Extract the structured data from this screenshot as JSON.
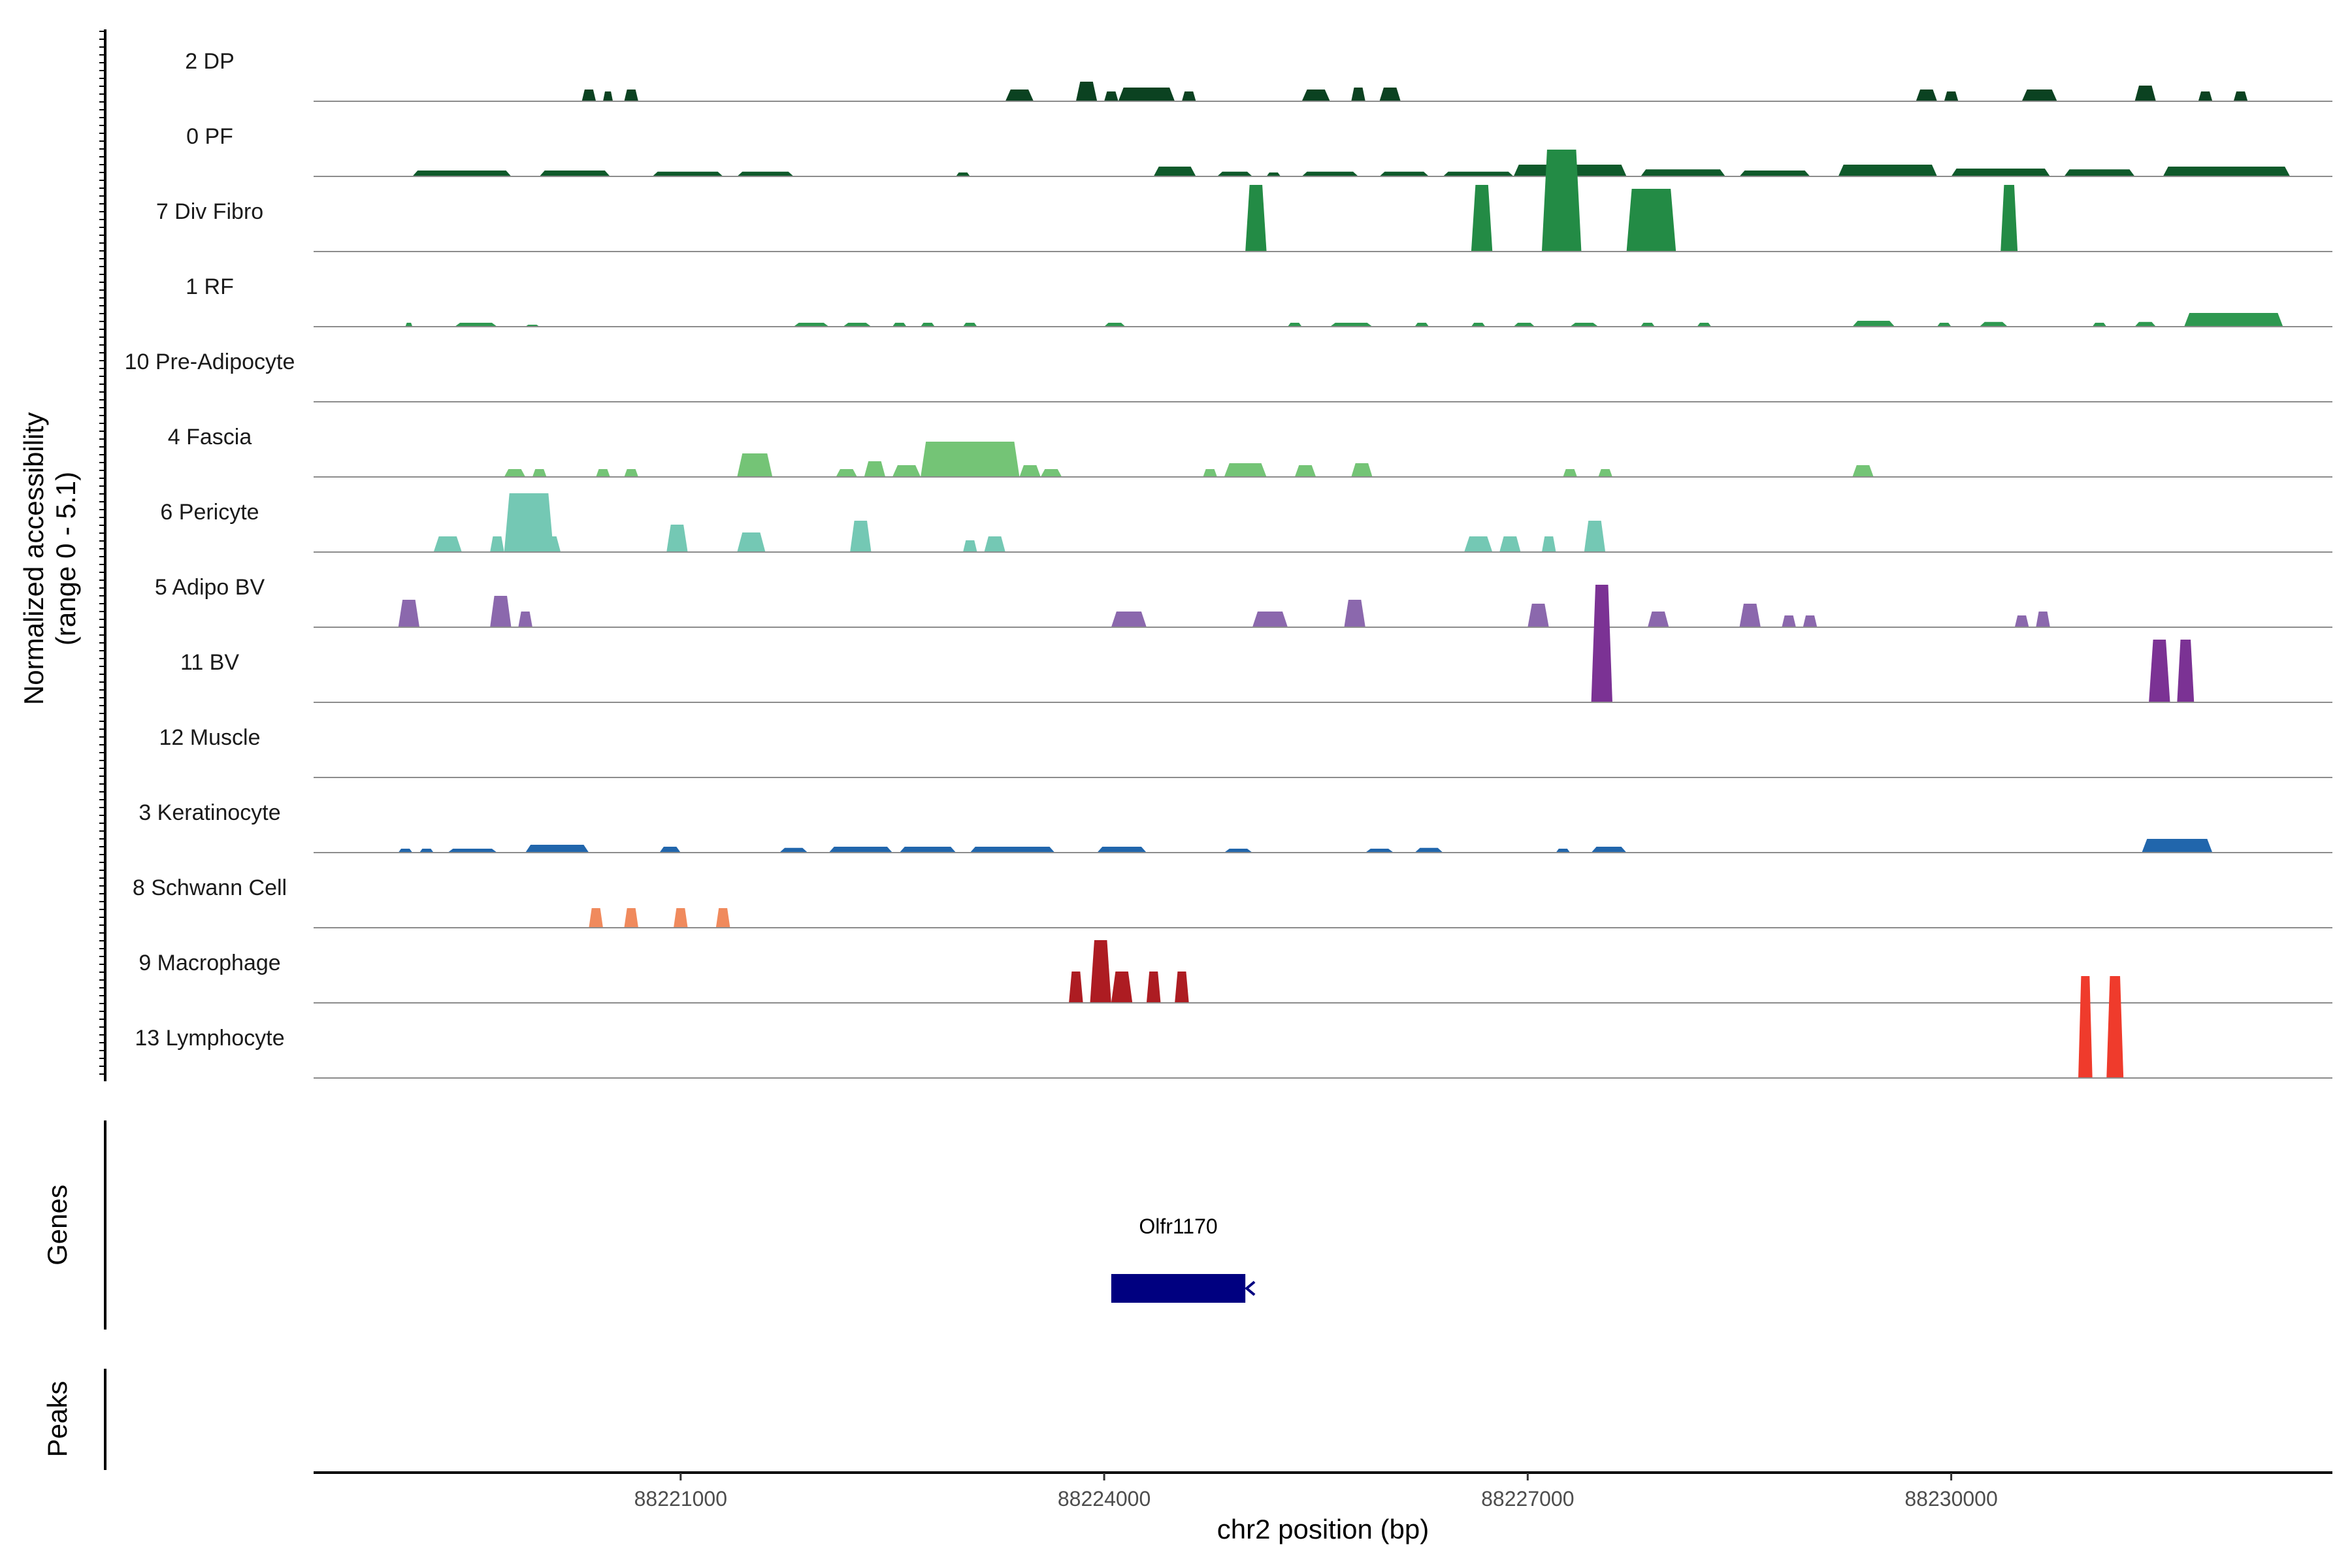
{
  "chart_data": {
    "type": "area",
    "title": "",
    "ylabel_line1": "Normalized accessibility",
    "ylabel_line2": "(range 0 - 5.1)",
    "xlabel": "chr2 position (bp)",
    "genes_label": "Genes",
    "peaks_label": "Peaks",
    "y_range": [
      0,
      5.1
    ],
    "x_range": [
      88218400,
      88232700
    ],
    "x_ticks": [
      88221000,
      88224000,
      88227000,
      88230000
    ],
    "x_tick_labels": [
      "88221000",
      "88224000",
      "88227000",
      "88230000"
    ],
    "tracks": [
      {
        "name": "2 DP",
        "color": "#0b4221",
        "peaks": [
          [
            88220300,
            88220400,
            0.3
          ],
          [
            88220450,
            88220520,
            0.25
          ],
          [
            88220600,
            88220700,
            0.3
          ],
          [
            88223300,
            88223500,
            0.3
          ],
          [
            88223800,
            88223950,
            0.5
          ],
          [
            88224000,
            88224100,
            0.25
          ],
          [
            88224100,
            88224500,
            0.35
          ],
          [
            88224550,
            88224650,
            0.25
          ],
          [
            88225400,
            88225600,
            0.3
          ],
          [
            88225750,
            88225850,
            0.35
          ],
          [
            88225950,
            88226100,
            0.35
          ],
          [
            88229750,
            88229900,
            0.3
          ],
          [
            88229950,
            88230050,
            0.25
          ],
          [
            88230500,
            88230750,
            0.3
          ],
          [
            88231300,
            88231450,
            0.4
          ],
          [
            88231750,
            88231850,
            0.25
          ],
          [
            88232000,
            88232100,
            0.25
          ]
        ]
      },
      {
        "name": "0 PF",
        "color": "#0f5a2b",
        "peaks": [
          [
            88219100,
            88219800,
            0.15
          ],
          [
            88220000,
            88220500,
            0.15
          ],
          [
            88220800,
            88221300,
            0.12
          ],
          [
            88221400,
            88221800,
            0.12
          ],
          [
            88222950,
            88223050,
            0.1
          ],
          [
            88224350,
            88224650,
            0.25
          ],
          [
            88224800,
            88225050,
            0.12
          ],
          [
            88225150,
            88225250,
            0.1
          ],
          [
            88225400,
            88225800,
            0.12
          ],
          [
            88225950,
            88226300,
            0.12
          ],
          [
            88226400,
            88226900,
            0.12
          ],
          [
            88226900,
            88227700,
            0.3
          ],
          [
            88227800,
            88228400,
            0.18
          ],
          [
            88228500,
            88229000,
            0.15
          ],
          [
            88229200,
            88229900,
            0.3
          ],
          [
            88230000,
            88230700,
            0.2
          ],
          [
            88230800,
            88231300,
            0.18
          ],
          [
            88231500,
            88232400,
            0.25
          ]
        ]
      },
      {
        "name": "7 Div Fibro",
        "color": "#238b45",
        "peaks": [
          [
            88225000,
            88225150,
            1.7
          ],
          [
            88226600,
            88226750,
            1.7
          ],
          [
            88227100,
            88227380,
            2.6
          ],
          [
            88227700,
            88228050,
            1.6
          ],
          [
            88230350,
            88230470,
            1.7
          ]
        ]
      },
      {
        "name": "1 RF",
        "color": "#2e9850",
        "peaks": [
          [
            88219050,
            88219100,
            0.1
          ],
          [
            88219400,
            88219700,
            0.1
          ],
          [
            88219900,
            88220000,
            0.05
          ],
          [
            88221800,
            88222050,
            0.1
          ],
          [
            88222150,
            88222350,
            0.1
          ],
          [
            88222500,
            88222600,
            0.1
          ],
          [
            88222700,
            88222800,
            0.1
          ],
          [
            88223000,
            88223100,
            0.1
          ],
          [
            88224000,
            88224150,
            0.1
          ],
          [
            88225300,
            88225400,
            0.1
          ],
          [
            88225600,
            88225900,
            0.1
          ],
          [
            88226200,
            88226300,
            0.1
          ],
          [
            88226600,
            88226700,
            0.1
          ],
          [
            88226900,
            88227050,
            0.1
          ],
          [
            88227300,
            88227500,
            0.1
          ],
          [
            88227800,
            88227900,
            0.1
          ],
          [
            88228200,
            88228300,
            0.1
          ],
          [
            88229300,
            88229600,
            0.15
          ],
          [
            88229900,
            88230000,
            0.1
          ],
          [
            88230200,
            88230400,
            0.12
          ],
          [
            88231000,
            88231100,
            0.1
          ],
          [
            88231300,
            88231450,
            0.12
          ],
          [
            88231650,
            88232350,
            0.35
          ]
        ]
      },
      {
        "name": "10 Pre-Adipocyte",
        "color": "#41ab5d",
        "peaks": []
      },
      {
        "name": "4 Fascia",
        "color": "#74c476",
        "peaks": [
          [
            88219750,
            88219900,
            0.2
          ],
          [
            88219950,
            88220050,
            0.2
          ],
          [
            88220400,
            88220500,
            0.2
          ],
          [
            88220600,
            88220700,
            0.2
          ],
          [
            88221400,
            88221650,
            0.6
          ],
          [
            88222100,
            88222250,
            0.2
          ],
          [
            88222300,
            88222450,
            0.4
          ],
          [
            88222500,
            88222700,
            0.3
          ],
          [
            88222700,
            88223400,
            0.9
          ],
          [
            88223400,
            88223550,
            0.3
          ],
          [
            88223550,
            88223700,
            0.2
          ],
          [
            88224700,
            88224800,
            0.2
          ],
          [
            88224850,
            88225150,
            0.35
          ],
          [
            88225350,
            88225500,
            0.3
          ],
          [
            88225750,
            88225900,
            0.35
          ],
          [
            88227250,
            88227350,
            0.2
          ],
          [
            88227500,
            88227600,
            0.2
          ],
          [
            88229300,
            88229450,
            0.3
          ]
        ]
      },
      {
        "name": "6 Pericyte",
        "color": "#74c8b4",
        "peaks": [
          [
            88219250,
            88219450,
            0.4
          ],
          [
            88219650,
            88219750,
            0.4
          ],
          [
            88219750,
            88220100,
            1.5
          ],
          [
            88220000,
            88220150,
            0.4
          ],
          [
            88220900,
            88221050,
            0.7
          ],
          [
            88221400,
            88221600,
            0.5
          ],
          [
            88222200,
            88222350,
            0.8
          ],
          [
            88223000,
            88223100,
            0.3
          ],
          [
            88223150,
            88223300,
            0.4
          ],
          [
            88226550,
            88226750,
            0.4
          ],
          [
            88226800,
            88226950,
            0.4
          ],
          [
            88227100,
            88227200,
            0.4
          ],
          [
            88227400,
            88227550,
            0.8
          ]
        ]
      },
      {
        "name": "5 Adipo BV",
        "color": "#8b68ad",
        "peaks": [
          [
            88219000,
            88219150,
            0.7
          ],
          [
            88219650,
            88219800,
            0.8
          ],
          [
            88219850,
            88219950,
            0.4
          ],
          [
            88224050,
            88224300,
            0.4
          ],
          [
            88225050,
            88225300,
            0.4
          ],
          [
            88225700,
            88225850,
            0.7
          ],
          [
            88227000,
            88227150,
            0.6
          ],
          [
            88227850,
            88228000,
            0.4
          ],
          [
            88228500,
            88228650,
            0.6
          ],
          [
            88228800,
            88228900,
            0.3
          ],
          [
            88228950,
            88229050,
            0.3
          ],
          [
            88230450,
            88230550,
            0.3
          ],
          [
            88230600,
            88230700,
            0.4
          ]
        ]
      },
      {
        "name": "11 BV",
        "color": "#7b3294",
        "peaks": [
          [
            88227450,
            88227600,
            3.0
          ],
          [
            88231400,
            88231550,
            1.6
          ],
          [
            88231600,
            88231720,
            1.6
          ]
        ]
      },
      {
        "name": "12 Muscle",
        "color": "#6a51a3",
        "peaks": []
      },
      {
        "name": "3 Keratinocyte",
        "color": "#2166ac",
        "peaks": [
          [
            88219000,
            88219100,
            0.1
          ],
          [
            88219150,
            88219250,
            0.1
          ],
          [
            88219350,
            88219700,
            0.1
          ],
          [
            88219900,
            88220350,
            0.2
          ],
          [
            88220850,
            88221000,
            0.15
          ],
          [
            88221700,
            88221900,
            0.12
          ],
          [
            88222050,
            88222500,
            0.15
          ],
          [
            88222550,
            88222950,
            0.15
          ],
          [
            88223050,
            88223650,
            0.15
          ],
          [
            88223950,
            88224300,
            0.15
          ],
          [
            88224850,
            88225050,
            0.1
          ],
          [
            88225850,
            88226050,
            0.1
          ],
          [
            88226200,
            88226400,
            0.12
          ],
          [
            88227200,
            88227300,
            0.1
          ],
          [
            88227450,
            88227700,
            0.15
          ],
          [
            88231350,
            88231850,
            0.35
          ]
        ]
      },
      {
        "name": "8 Schwann Cell",
        "color": "#f08a5d",
        "peaks": [
          [
            88220350,
            88220450,
            0.5
          ],
          [
            88220600,
            88220700,
            0.5
          ],
          [
            88220950,
            88221050,
            0.5
          ],
          [
            88221250,
            88221350,
            0.5
          ]
        ]
      },
      {
        "name": "9 Macrophage",
        "color": "#ad1c22",
        "peaks": [
          [
            88223750,
            88223850,
            0.8
          ],
          [
            88223900,
            88224050,
            1.6
          ],
          [
            88224050,
            88224200,
            0.8
          ],
          [
            88224300,
            88224400,
            0.8
          ],
          [
            88224500,
            88224600,
            0.8
          ]
        ]
      },
      {
        "name": "13 Lymphocyte",
        "color": "#ef3b2c",
        "peaks": [
          [
            88230900,
            88231000,
            2.6
          ],
          [
            88231100,
            88231220,
            2.6
          ]
        ]
      }
    ],
    "gene": {
      "name": "Olfr1170",
      "start": 88224050,
      "end": 88225000,
      "strand": "-",
      "color": "#000080"
    }
  }
}
